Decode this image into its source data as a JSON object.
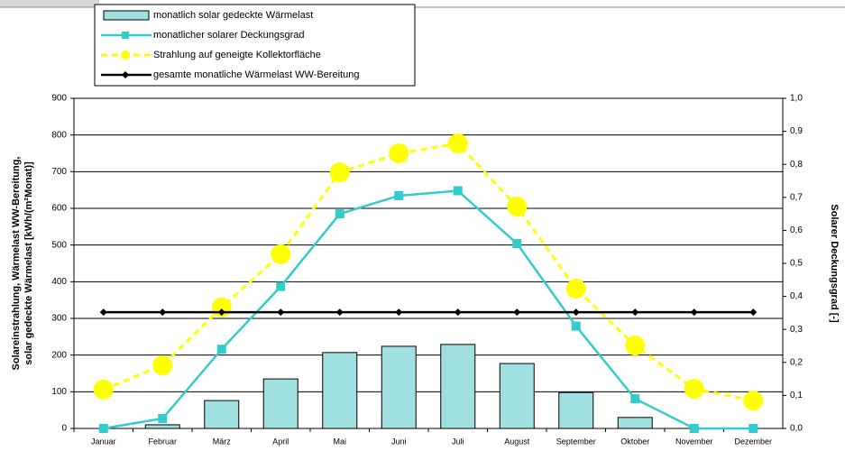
{
  "chart_data": {
    "type": "combo",
    "categories": [
      "Januar",
      "Februar",
      "März",
      "April",
      "Mai",
      "Juni",
      "Juli",
      "August",
      "September",
      "Oktober",
      "November",
      "Dezember"
    ],
    "series": [
      {
        "name": "monatlich solar gedeckte Wärmelast",
        "type": "bar",
        "color": "#a0e0e0",
        "values": [
          0,
          10,
          76,
          135,
          207,
          224,
          229,
          177,
          98,
          30,
          0,
          0
        ]
      },
      {
        "name": "monatlicher solarer Deckungsgrad",
        "type": "line",
        "axis": "y2",
        "color": "#33cccc",
        "marker": "square",
        "values": [
          0,
          0.03,
          0.24,
          0.43,
          0.65,
          0.705,
          0.72,
          0.56,
          0.31,
          0.09,
          0,
          0
        ]
      },
      {
        "name": "Strahlung auf geneigte Kollektorfläche",
        "type": "line",
        "color": "#ffff00",
        "marker": "circle",
        "dashed": true,
        "values": [
          106,
          172,
          330,
          475,
          698,
          750,
          777,
          605,
          381,
          226,
          108,
          76
        ]
      },
      {
        "name": "gesamte monatliche Wärmelast WW-Bereitung",
        "type": "line",
        "color": "#000000",
        "marker": "diamond",
        "values": [
          317,
          317,
          317,
          317,
          317,
          317,
          317,
          317,
          317,
          317,
          317,
          317
        ]
      }
    ],
    "y_label": [
      "Solareinstrahlung, Wärmelast WW-Bereitung,",
      "solar gedeckte Wärmelast   [kWh/(m²Monat)]"
    ],
    "y2_label": "Solarer Deckungsgrad [-]",
    "ylim": [
      0,
      900
    ],
    "yticks": [
      0,
      100,
      200,
      300,
      400,
      500,
      600,
      700,
      800,
      900
    ],
    "y2lim": [
      0,
      1.0
    ],
    "y2ticks": [
      {
        "value": 0,
        "label": "0,0"
      },
      {
        "value": 0.1,
        "label": "0,1"
      },
      {
        "value": 0.2,
        "label": "0,2"
      },
      {
        "value": 0.3,
        "label": "0,3"
      },
      {
        "value": 0.4,
        "label": "0,4"
      },
      {
        "value": 0.5,
        "label": "0,5"
      },
      {
        "value": 0.6,
        "label": "0,6"
      },
      {
        "value": 0.7,
        "label": "0,7"
      },
      {
        "value": 0.8,
        "label": "0,8"
      },
      {
        "value": 0.9,
        "label": "0,9"
      },
      {
        "value": 1.0,
        "label": "1,0"
      }
    ],
    "grid": true,
    "legend": "top-left"
  }
}
